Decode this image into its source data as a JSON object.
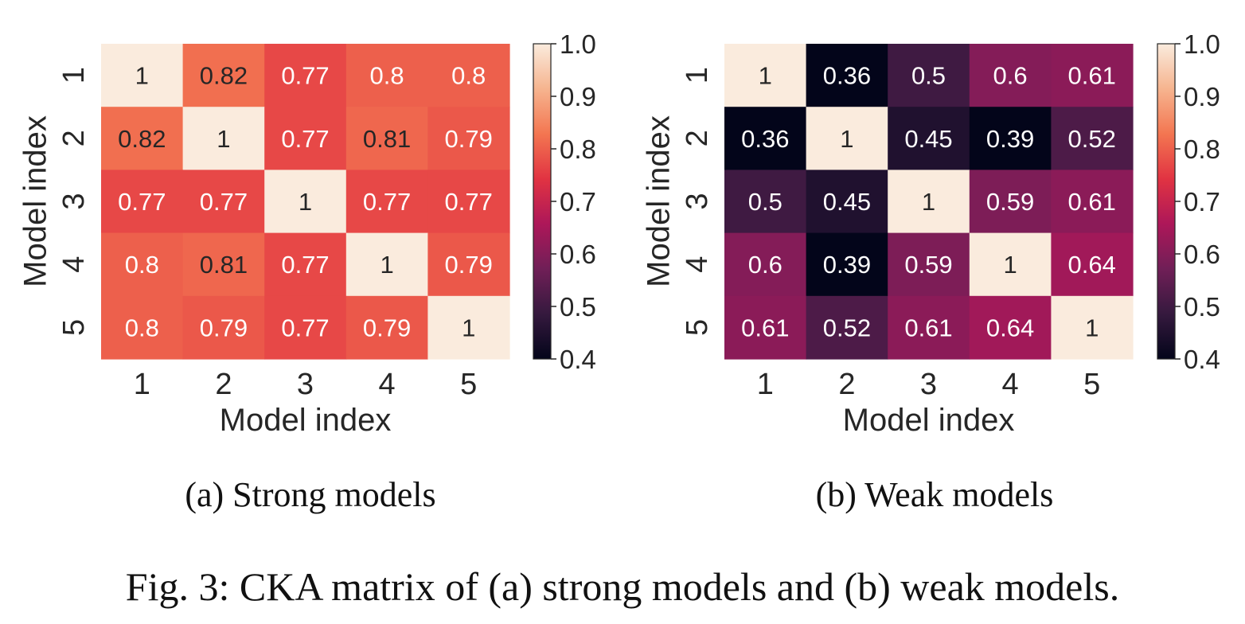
{
  "figure_caption": "Fig. 3: CKA matrix of (a) strong models and (b) weak models.",
  "chart_data": [
    {
      "type": "heatmap",
      "subcaption": "(a) Strong models",
      "xlabel": "Model index",
      "ylabel": "Model index",
      "x_ticks": [
        "1",
        "2",
        "3",
        "4",
        "5"
      ],
      "y_ticks": [
        "1",
        "2",
        "3",
        "4",
        "5"
      ],
      "values": [
        [
          1,
          0.82,
          0.77,
          0.8,
          0.8
        ],
        [
          0.82,
          1,
          0.77,
          0.81,
          0.79
        ],
        [
          0.77,
          0.77,
          1,
          0.77,
          0.77
        ],
        [
          0.8,
          0.81,
          0.77,
          1,
          0.79
        ],
        [
          0.8,
          0.79,
          0.77,
          0.79,
          1
        ]
      ],
      "labels": [
        [
          "1",
          "0.82",
          "0.77",
          "0.8",
          "0.8"
        ],
        [
          "0.82",
          "1",
          "0.77",
          "0.81",
          "0.79"
        ],
        [
          "0.77",
          "0.77",
          "1",
          "0.77",
          "0.77"
        ],
        [
          "0.8",
          "0.81",
          "0.77",
          "1",
          "0.79"
        ],
        [
          "0.8",
          "0.79",
          "0.77",
          "0.79",
          "1"
        ]
      ],
      "colorbar": {
        "min": 0.4,
        "max": 1.0,
        "ticks": [
          "0.4",
          "0.5",
          "0.6",
          "0.7",
          "0.8",
          "0.9",
          "1.0"
        ]
      },
      "colormap": "rocket"
    },
    {
      "type": "heatmap",
      "subcaption": "(b) Weak models",
      "xlabel": "Model index",
      "ylabel": "Model index",
      "x_ticks": [
        "1",
        "2",
        "3",
        "4",
        "5"
      ],
      "y_ticks": [
        "1",
        "2",
        "3",
        "4",
        "5"
      ],
      "values": [
        [
          1,
          0.36,
          0.5,
          0.6,
          0.61
        ],
        [
          0.36,
          1,
          0.45,
          0.39,
          0.52
        ],
        [
          0.5,
          0.45,
          1,
          0.59,
          0.61
        ],
        [
          0.6,
          0.39,
          0.59,
          1,
          0.64
        ],
        [
          0.61,
          0.52,
          0.61,
          0.64,
          1
        ]
      ],
      "labels": [
        [
          "1",
          "0.36",
          "0.5",
          "0.6",
          "0.61"
        ],
        [
          "0.36",
          "1",
          "0.45",
          "0.39",
          "0.52"
        ],
        [
          "0.5",
          "0.45",
          "1",
          "0.59",
          "0.61"
        ],
        [
          "0.6",
          "0.39",
          "0.59",
          "1",
          "0.64"
        ],
        [
          "0.61",
          "0.52",
          "0.61",
          "0.64",
          "1"
        ]
      ],
      "colorbar": {
        "min": 0.4,
        "max": 1.0,
        "ticks": [
          "0.4",
          "0.5",
          "0.6",
          "0.7",
          "0.8",
          "0.9",
          "1.0"
        ]
      },
      "colormap": "rocket"
    }
  ],
  "colormap_stops": [
    "#03051a",
    "#35193e",
    "#701f57",
    "#ad1759",
    "#e13342",
    "#f37651",
    "#f6b48f",
    "#faebdd"
  ]
}
